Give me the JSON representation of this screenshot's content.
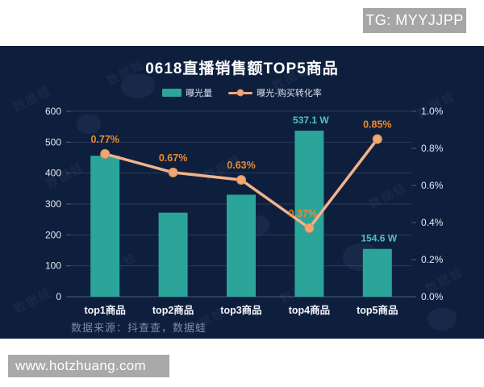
{
  "badge": {
    "text": "TG: MYYJJPP"
  },
  "website_bar": {
    "text": "www.hotzhuang.com"
  },
  "watermark": {
    "text": "数据蛙"
  },
  "chart_data": {
    "type": "bar",
    "title": "0618直播销售额TOP5商品",
    "categories": [
      "top1商品",
      "top2商品",
      "top3商品",
      "top4商品",
      "top5商品"
    ],
    "series": [
      {
        "name": "曝光量",
        "type": "bar",
        "values": [
          456,
          272,
          330,
          537.1,
          154.6
        ],
        "unit": "W",
        "color": "#2ba49a",
        "label_color": "#4fc2bb",
        "labels": [
          "",
          "",
          "",
          "537.1 W",
          "154.6 W"
        ]
      },
      {
        "name": "曝光-购买转化率",
        "type": "line",
        "values": [
          0.77,
          0.67,
          0.63,
          0.37,
          0.85
        ],
        "unit": "%",
        "color": "#f2b38c",
        "marker_fill": "#f0a776",
        "marker_stroke": "#de8f57",
        "label_color": "#ee8a2d",
        "labels": [
          "0.77%",
          "0.67%",
          "0.63%",
          "0.37%",
          "0.85%"
        ]
      }
    ],
    "left_axis": {
      "ticks": [
        0,
        100,
        200,
        300,
        400,
        500,
        600
      ],
      "min": 0,
      "max": 600
    },
    "right_axis": {
      "ticks": [
        "0.0%",
        "0.2%",
        "0.4%",
        "0.6%",
        "0.8%",
        "1.0%"
      ],
      "tick_values": [
        0,
        0.2,
        0.4,
        0.6,
        0.8,
        1.0
      ],
      "min": 0,
      "max": 1.0
    },
    "source_note": "数据来源：抖查查，数据蛙",
    "legend_position": "top",
    "grid": true,
    "axis_text_color": "#e3e8f0",
    "category_text_color": "#f4f7fb",
    "background_color": "#0e1f3e"
  }
}
